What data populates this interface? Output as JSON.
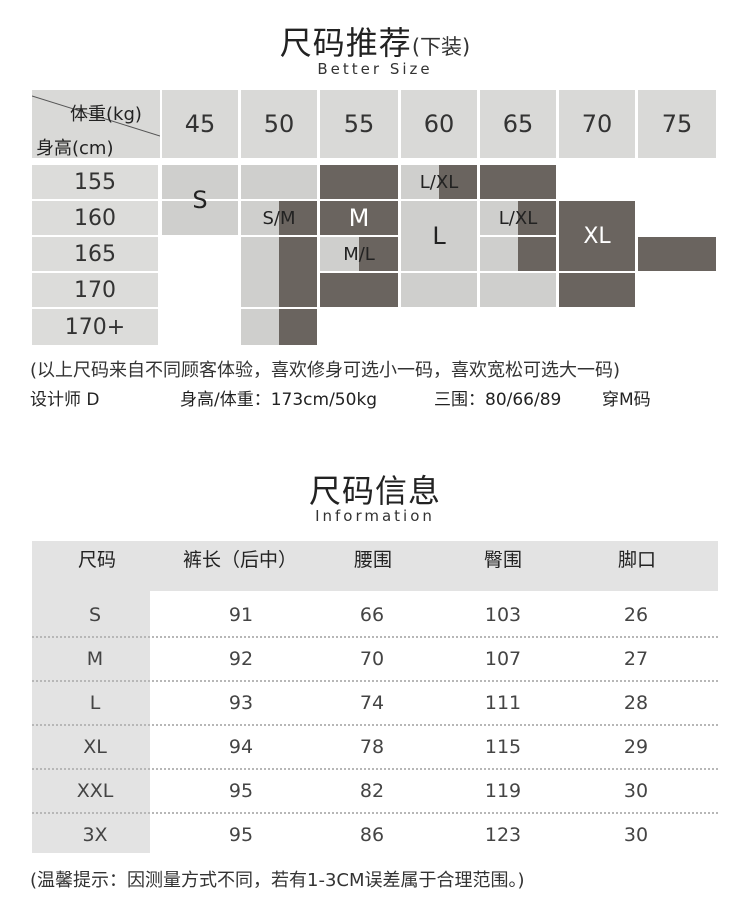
{
  "recommend": {
    "title": "尺码推荐",
    "title_suffix": "(下装)",
    "subtitle": "Better Size",
    "weight_label": "体重(kg)",
    "height_label": "身高(cm)",
    "weights": [
      "45",
      "50",
      "55",
      "60",
      "65",
      "70",
      "75"
    ],
    "heights": [
      "155",
      "160",
      "165",
      "170",
      "170+"
    ],
    "size_labels": [
      "S",
      "S/M",
      "M",
      "L/XL",
      "L",
      "L/XL",
      "XL",
      "M/L"
    ],
    "note": "(以上尺码来自不同顾客体验，喜欢修身可选小一码，喜欢宽松可选大一码)",
    "designer_label": "设计师 D",
    "designer_hw": "身高/体重：173cm/50kg",
    "designer_measure": "三围：80/66/89",
    "designer_size": "穿M码"
  },
  "info": {
    "title": "尺码信息",
    "subtitle": "Information",
    "headers": [
      "尺码",
      "裤长（后中）",
      "腰围",
      "臀围",
      "脚口"
    ],
    "rows": [
      [
        "S",
        "91",
        "66",
        "103",
        "26"
      ],
      [
        "M",
        "92",
        "70",
        "107",
        "27"
      ],
      [
        "L",
        "93",
        "74",
        "111",
        "28"
      ],
      [
        "XL",
        "94",
        "78",
        "115",
        "29"
      ],
      [
        "XXL",
        "95",
        "82",
        "119",
        "30"
      ],
      [
        "3X",
        "95",
        "86",
        "123",
        "30"
      ]
    ],
    "footer": "(温馨提示：因测量方式不同，若有1-3CM误差属于合理范围。)"
  },
  "colors": {
    "light_block": "#cfcfcd",
    "dark_block": "#6a645f",
    "header_bg": "#d9d9d7"
  }
}
